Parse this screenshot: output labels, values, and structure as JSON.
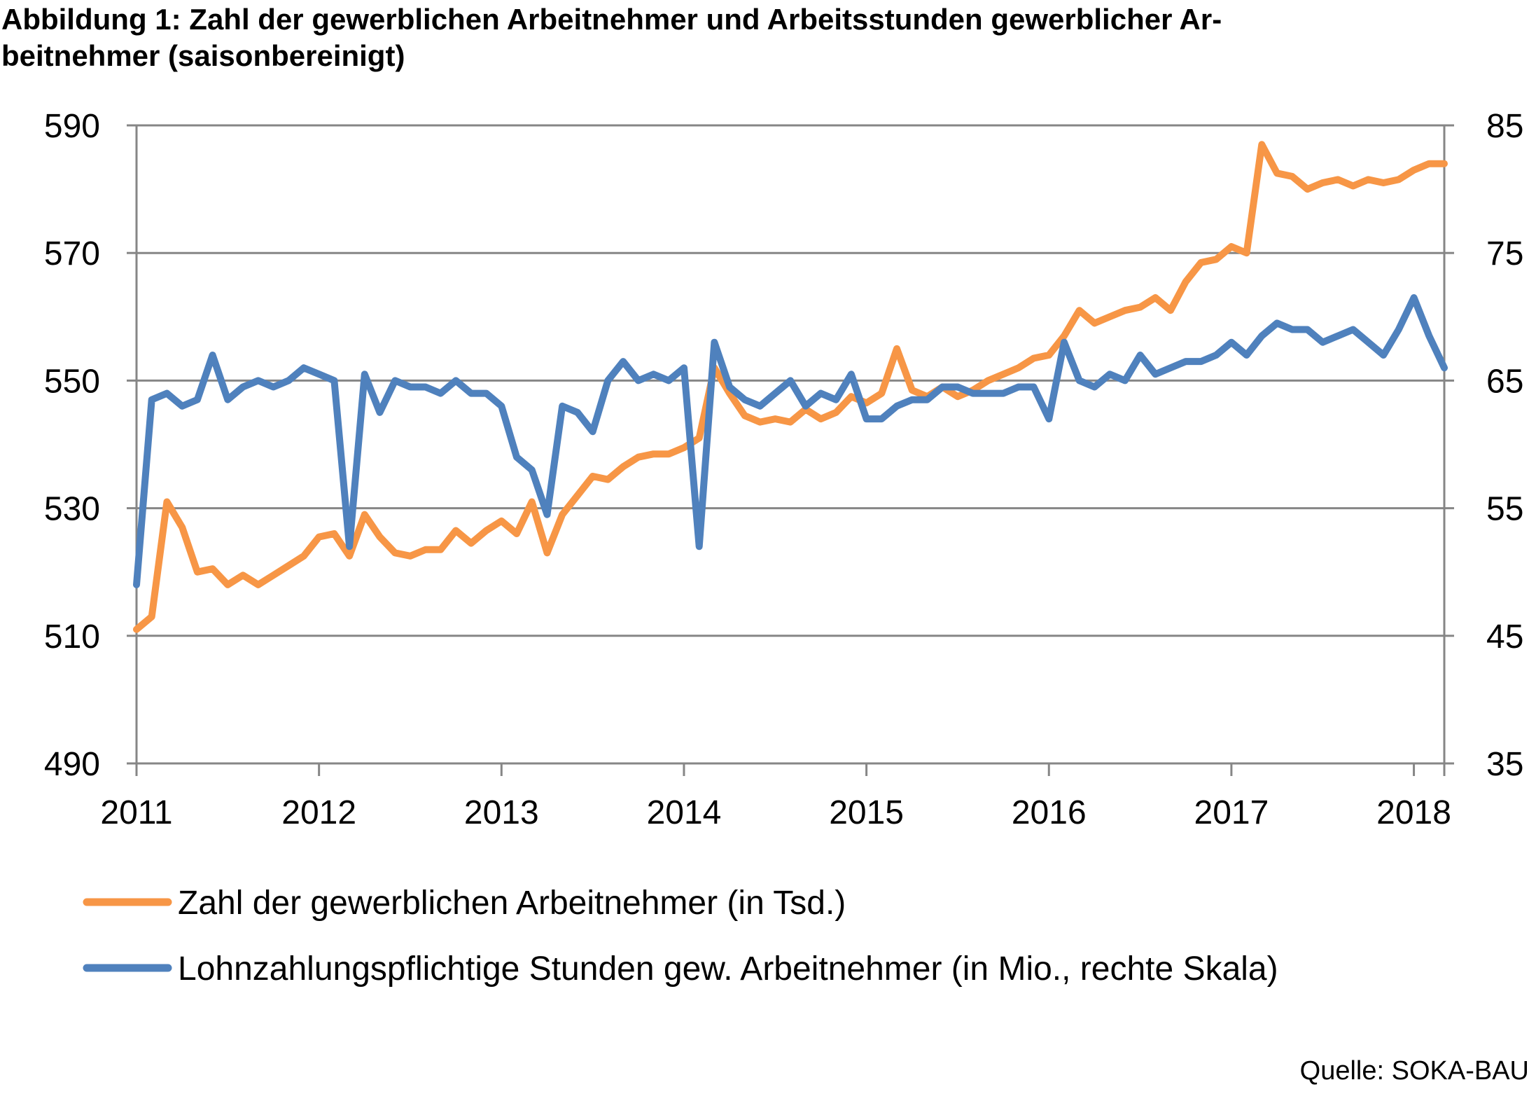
{
  "title_line1": "Abbildung 1: Zahl der gewerblichen Arbeitnehmer und Arbeitsstunden gewerblicher Ar-",
  "title_line2": "beitnehmer (saisonbereinigt)",
  "source": "Quelle: SOKA-BAU",
  "chart_data": {
    "type": "line",
    "title": "Abbildung 1: Zahl der gewerblichen Arbeitnehmer und Arbeitsstunden gewerblicher Arbeitnehmer (saisonbereinigt)",
    "x_axis": {
      "type": "monthly",
      "start": "2011-01",
      "end": "2018-02",
      "tick_labels": [
        "2011",
        "2012",
        "2013",
        "2014",
        "2015",
        "2016",
        "2017",
        "2018"
      ]
    },
    "y_left": {
      "min": 490,
      "max": 590,
      "ticks": [
        490,
        510,
        530,
        550,
        570,
        590
      ]
    },
    "y_right": {
      "min": 35,
      "max": 85,
      "ticks": [
        35,
        45,
        55,
        65,
        75,
        85
      ]
    },
    "grid": true,
    "legend_position": "bottom",
    "series": [
      {
        "name": "Zahl der gewerblichen Arbeitnehmer (in Tsd.)",
        "axis": "left",
        "color": "#F79646",
        "values": [
          511,
          513,
          531,
          527,
          520,
          520.5,
          518,
          519.5,
          518,
          519.5,
          521,
          522.5,
          525.5,
          526,
          522.5,
          529,
          525.5,
          523,
          522.5,
          523.5,
          523.5,
          526.5,
          524.5,
          526.5,
          528,
          526,
          531,
          523,
          529,
          532,
          535,
          534.5,
          536.5,
          538,
          538.5,
          538.5,
          539.5,
          541,
          552,
          548,
          544.5,
          543.5,
          544,
          543.5,
          545.5,
          544,
          545,
          547.5,
          546.5,
          548,
          555,
          548.5,
          547.5,
          549,
          547.5,
          548.5,
          550,
          551,
          552,
          553.5,
          554,
          557,
          561,
          559,
          560,
          561,
          561.5,
          563,
          561,
          565.5,
          568.5,
          569,
          571,
          570,
          587,
          582.5,
          582,
          580,
          581,
          581.5,
          580.5,
          581.5,
          581,
          581.5,
          583,
          584,
          584
        ]
      },
      {
        "name": "Lohnzahlungspflichtige Stunden gew. Arbeitnehmer (in Mio., rechte Skala)",
        "axis": "right",
        "color": "#4F81BD",
        "values": [
          49,
          63.5,
          64,
          63,
          63.5,
          67,
          63.5,
          64.5,
          65,
          64.5,
          65,
          66,
          65.5,
          65,
          52,
          65.5,
          62.5,
          65,
          64.5,
          64.5,
          64,
          65,
          64,
          64,
          63,
          59,
          58,
          54.5,
          63,
          62.5,
          61,
          65,
          66.5,
          65,
          65.5,
          65,
          66,
          52,
          68,
          64.5,
          63.5,
          63,
          64,
          65,
          63,
          64,
          63.5,
          65.5,
          62,
          62,
          63,
          63.5,
          63.5,
          64.5,
          64.5,
          64,
          64,
          64,
          64.5,
          64.5,
          62,
          68,
          65,
          64.5,
          65.5,
          65,
          67,
          65.5,
          66,
          66.5,
          66.5,
          67,
          68,
          67,
          68.5,
          69.5,
          69,
          69,
          68,
          68.5,
          69,
          68,
          67,
          69,
          71.5,
          68.5,
          66
        ]
      }
    ]
  }
}
